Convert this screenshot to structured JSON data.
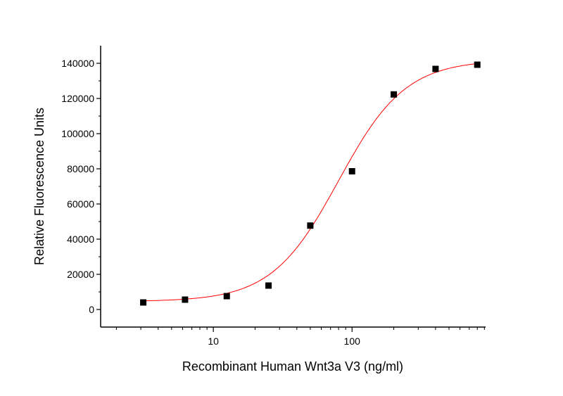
{
  "chart_data": {
    "type": "scatter",
    "title": "",
    "xlabel": "Recombinant Human Wnt3a V3 (ng/ml)",
    "ylabel": "Relative Fluorescence Units",
    "x_scale": "log",
    "xlim": [
      1.54,
      918
    ],
    "ylim": [
      -10000,
      150000
    ],
    "x_ticks": [
      10,
      100
    ],
    "x_tick_labels": [
      "10",
      "100"
    ],
    "y_ticks": [
      0,
      20000,
      40000,
      60000,
      80000,
      100000,
      120000,
      140000
    ],
    "y_tick_labels": [
      "0",
      "20000",
      "40000",
      "60000",
      "80000",
      "100000",
      "120000",
      "140000"
    ],
    "grid": false,
    "series": [
      {
        "marker": "square",
        "color": "#000000",
        "x": [
          3.125,
          6.25,
          12.5,
          25,
          50,
          100,
          200,
          400,
          800
        ],
        "y": [
          4000,
          5600,
          7600,
          13600,
          47700,
          78600,
          122300,
          136800,
          139200
        ]
      }
    ],
    "fit": {
      "type": "4PL",
      "color": "#ff0000",
      "bottom": 4500,
      "top": 142000,
      "ec50": 80,
      "hill": 1.8
    }
  }
}
